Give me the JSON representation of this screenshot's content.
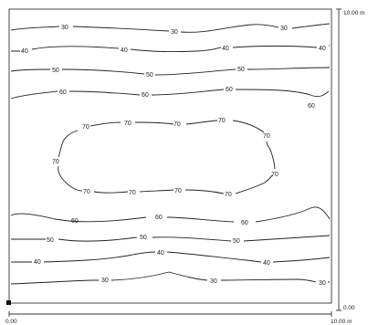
{
  "area_label_x_start": "0.00",
  "area_label_x_end": "10.00 m",
  "area_label_y_start": "0.00",
  "area_label_y_end": "10.00 m",
  "contour_levels": [
    "30",
    "40",
    "50",
    "60",
    "70"
  ],
  "labels": {
    "top_30_a": "30",
    "top_30_b": "30",
    "top_30_c": "30",
    "top_40_a": "40",
    "top_40_b": "40",
    "top_40_c": "40",
    "top_40_d": "40",
    "top_50_a": "50",
    "top_50_b": "50",
    "top_50_c": "50",
    "top_60_a": "60",
    "top_60_b": "60",
    "top_60_c": "60",
    "top_60_d": "60",
    "mid_70_a": "70",
    "mid_70_b": "70",
    "mid_70_c": "70",
    "mid_70_d": "70",
    "mid_70_e": "70",
    "mid_70_f": "70",
    "mid_70_g": "70",
    "mid_70_h": "70",
    "mid_70_i": "70",
    "mid_70_j": "70",
    "bot_60_a": "60",
    "bot_60_b": "60",
    "bot_60_c": "60",
    "bot_50_a": "50",
    "bot_50_b": "50",
    "bot_50_c": "50",
    "bot_40_a": "40",
    "bot_40_b": "40",
    "bot_40_c": "40",
    "bot_30_a": "30",
    "bot_30_b": "30",
    "bot_30_c": "30"
  },
  "colors": {
    "line": "#222222",
    "background": "#ffffff"
  }
}
